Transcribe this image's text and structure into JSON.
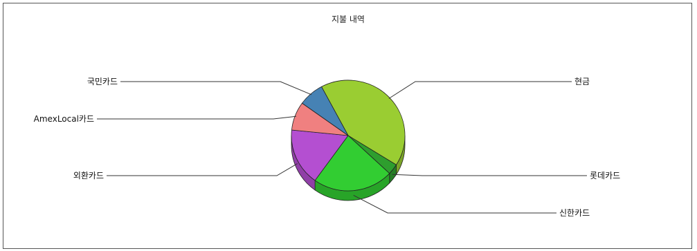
{
  "chart_data": {
    "type": "pie",
    "title": "지불 내역",
    "style": "3d",
    "labels": [
      "현금",
      "롯데카드",
      "신한카드",
      "외환카드",
      "AmexLocal카드",
      "국민카드"
    ],
    "values": [
      40,
      3,
      22,
      16,
      8,
      7
    ],
    "colors": [
      "#9acd32",
      "#2e9e2e",
      "#32cd32",
      "#b44fd1",
      "#f08080",
      "#4682b4"
    ]
  }
}
